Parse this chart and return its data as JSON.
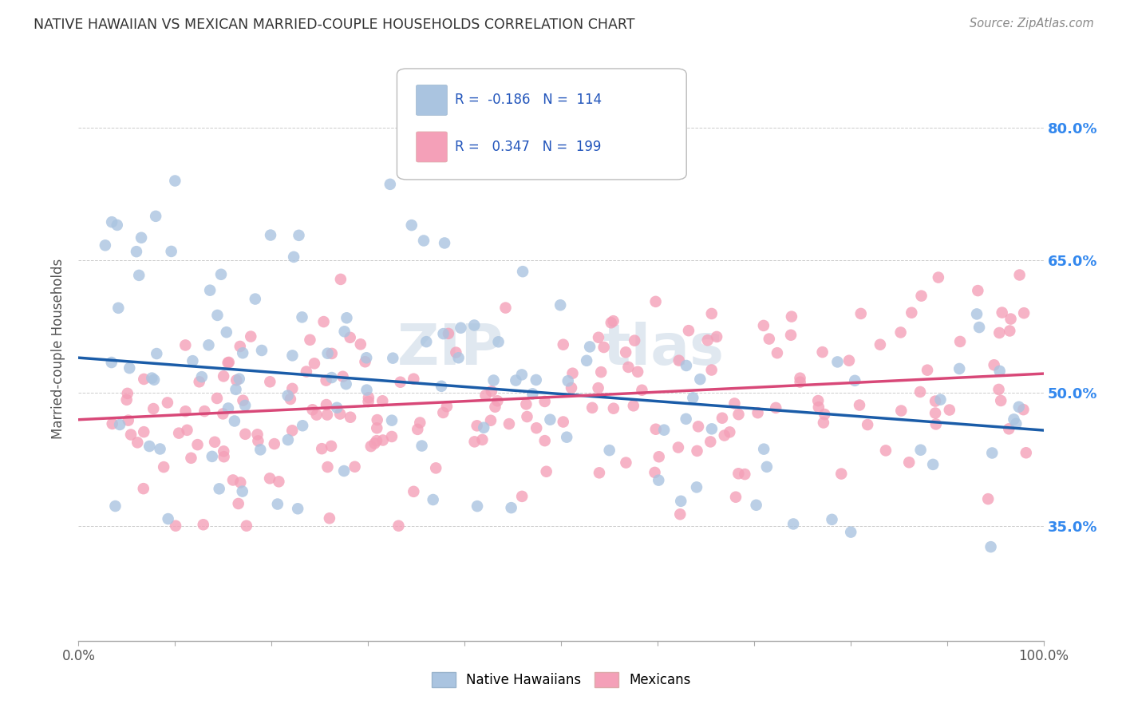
{
  "title": "NATIVE HAWAIIAN VS MEXICAN MARRIED-COUPLE HOUSEHOLDS CORRELATION CHART",
  "source": "Source: ZipAtlas.com",
  "ylabel": "Married-couple Households",
  "ytick_labels": [
    "35.0%",
    "50.0%",
    "65.0%",
    "80.0%"
  ],
  "ytick_values": [
    0.35,
    0.5,
    0.65,
    0.8
  ],
  "xlim": [
    0.0,
    1.0
  ],
  "ylim": [
    0.22,
    0.88
  ],
  "legend_r_hawaiian": "-0.186",
  "legend_n_hawaiian": "114",
  "legend_r_mexican": "0.347",
  "legend_n_mexican": "199",
  "color_hawaiian": "#aac4e0",
  "color_mexican": "#f4a0b8",
  "line_color_hawaiian": "#1a5ca8",
  "line_color_mexican": "#d84878",
  "background_color": "#ffffff",
  "hawaiian_line_start": 0.54,
  "hawaiian_line_end": 0.458,
  "mexican_line_start": 0.47,
  "mexican_line_end": 0.522
}
